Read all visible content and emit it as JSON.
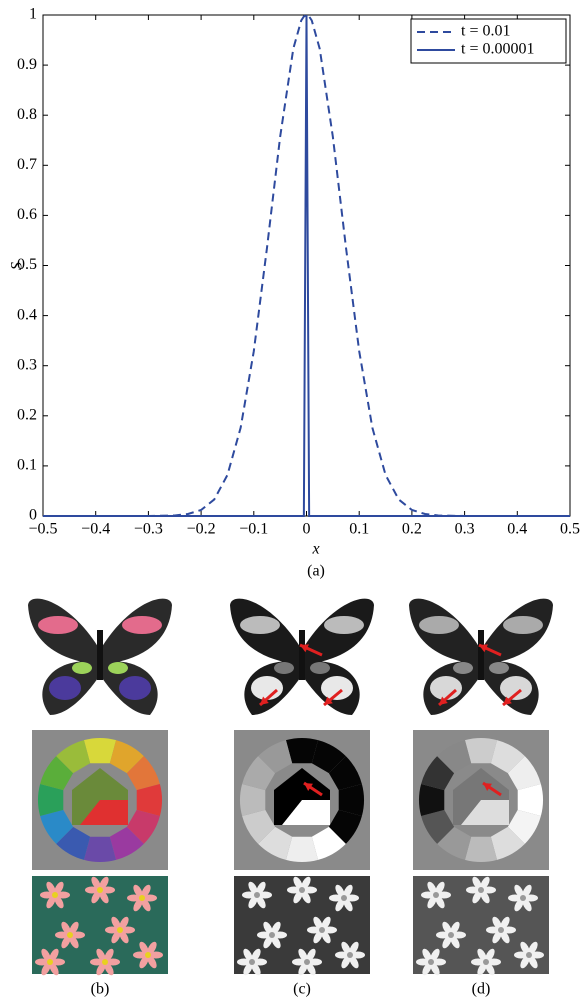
{
  "chart_data": {
    "type": "line",
    "x_label": "x",
    "y_label": "S",
    "x": [
      -0.5,
      -0.3,
      -0.25,
      -0.225,
      -0.2,
      -0.175,
      -0.15,
      -0.125,
      -0.1,
      -0.075,
      -0.05,
      -0.025,
      -0.01,
      -0.005,
      0,
      0.005,
      0.01,
      0.025,
      0.05,
      0.075,
      0.1,
      0.125,
      0.15,
      0.175,
      0.2,
      0.225,
      0.25,
      0.3,
      0.5
    ],
    "series": [
      {
        "name": "t = 0.01",
        "color": "#2e4a9e",
        "style": "dashed",
        "values": [
          0,
          0,
          0.001,
          0.004,
          0.012,
          0.033,
          0.082,
          0.176,
          0.329,
          0.535,
          0.757,
          0.933,
          0.989,
          0.997,
          1,
          0.997,
          0.989,
          0.933,
          0.757,
          0.535,
          0.329,
          0.176,
          0.082,
          0.033,
          0.012,
          0.004,
          0.001,
          0,
          0
        ]
      },
      {
        "name": "t = 0.00001",
        "color": "#2e4a9e",
        "style": "solid",
        "values": [
          0,
          0,
          0,
          0,
          0,
          0,
          0,
          0,
          0,
          0,
          0,
          0,
          0,
          0,
          1,
          0,
          0,
          0,
          0,
          0,
          0,
          0,
          0,
          0,
          0,
          0,
          0,
          0,
          0
        ]
      }
    ],
    "xlim": [
      -0.5,
      0.5
    ],
    "xticks": [
      {
        "value": -0.5,
        "label": "−0.5"
      },
      {
        "value": -0.4,
        "label": "−0.4"
      },
      {
        "value": -0.3,
        "label": "−0.3"
      },
      {
        "value": -0.2,
        "label": "−0.2"
      },
      {
        "value": -0.1,
        "label": "−0.1"
      },
      0,
      0.1,
      0.2,
      0.3,
      0.4,
      0.5
    ],
    "ylim": [
      0,
      1
    ],
    "yticks": [
      0,
      0.1,
      0.2,
      0.3,
      0.4,
      0.5,
      0.6,
      0.7,
      0.8,
      0.9,
      1
    ],
    "legend": "upper right",
    "grid": false
  },
  "figure": {
    "captions": [
      "(a)",
      "(b)",
      "(c)",
      "(d)"
    ]
  }
}
